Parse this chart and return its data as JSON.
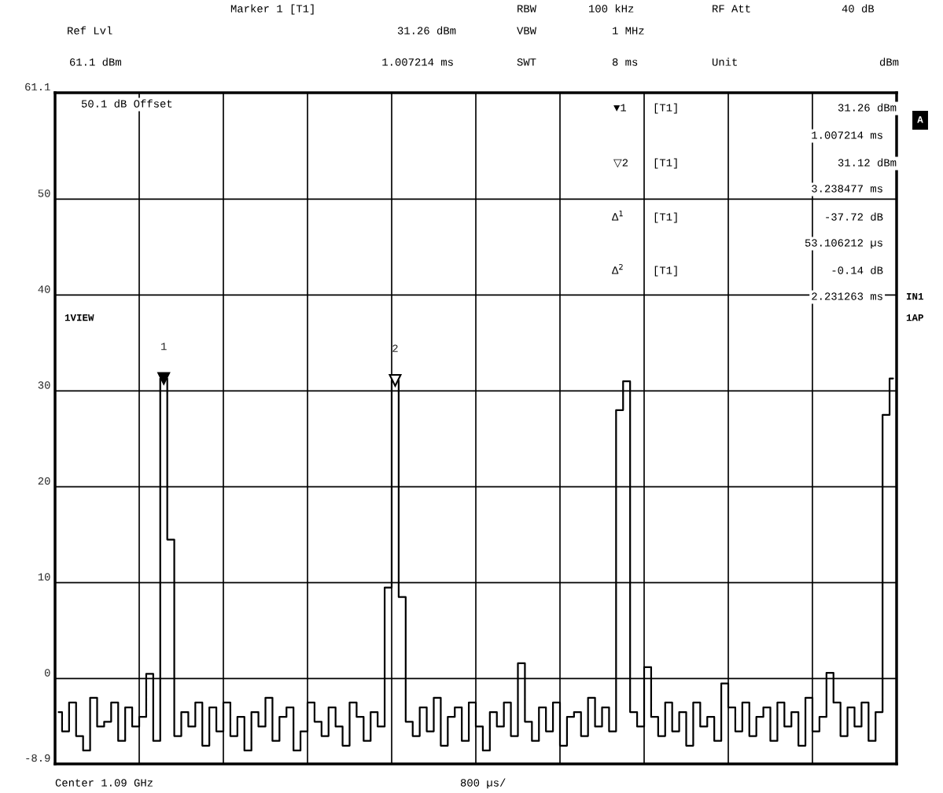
{
  "chart_data": {
    "type": "step",
    "categories": [
      null,
      null,
      null,
      null,
      null,
      null,
      null,
      null,
      null,
      null,
      null,
      null,
      null,
      null,
      null,
      null,
      null,
      null,
      null,
      null,
      null,
      null,
      null,
      null,
      null,
      null,
      null,
      null,
      null,
      null,
      null,
      null,
      null,
      null,
      null,
      null,
      null,
      null,
      null,
      null,
      null,
      null,
      null,
      null,
      null,
      null,
      null,
      null,
      null,
      null,
      null,
      null,
      null,
      null,
      null,
      null,
      null,
      null,
      null,
      null,
      null,
      null,
      null,
      null,
      null,
      null,
      null,
      null,
      null,
      null,
      null,
      null,
      null,
      null,
      null,
      null,
      null,
      null,
      null,
      null,
      null,
      null,
      null,
      null,
      null,
      null,
      null,
      null,
      null,
      null,
      null,
      null,
      null,
      null,
      null,
      null,
      null,
      null,
      null,
      null,
      null,
      null,
      null,
      null,
      null,
      null,
      null,
      null,
      null,
      null,
      null,
      null,
      null,
      null,
      null,
      null,
      null,
      null,
      null,
      null
    ],
    "series": [
      {
        "color": "#000000",
        "values": [
          -3.5,
          -5.5,
          -2.5,
          -6,
          -7.5,
          -2,
          -5,
          -4.5,
          -2.5,
          -6.5,
          -3,
          -5,
          -4,
          0.5,
          -6.5,
          31.3,
          14.5,
          -6,
          -3.5,
          -5,
          -2.5,
          -7,
          -3,
          -5.5,
          -2.5,
          -6,
          -4,
          -7.5,
          -3.5,
          -5,
          -2,
          -6.5,
          -4,
          -3,
          -7.5,
          -5.5,
          -2.5,
          -4.5,
          -6,
          -3,
          -5,
          -7,
          -2.5,
          -4,
          -6.5,
          -3.5,
          -5,
          9.5,
          31.1,
          8.5,
          -4.5,
          -6,
          -3,
          -5.5,
          -2,
          -7,
          -4,
          -3,
          -6.5,
          -2.5,
          -5,
          -7.5,
          -3.5,
          -5,
          -2.5,
          -6,
          1.6,
          -4.5,
          -6.5,
          -3,
          -5.5,
          -2.5,
          -7,
          -4,
          -3.5,
          -6,
          -2,
          -5,
          -3,
          -5.5,
          28,
          31,
          -3.5,
          -5,
          1.2,
          -4,
          -6,
          -2.5,
          -5.5,
          -3.5,
          -7,
          -2.5,
          -5,
          -4,
          -6.5,
          -0.5,
          -3,
          -5.5,
          -2.5,
          -6,
          -4,
          -3,
          -6.5,
          -2.5,
          -5,
          -3.5,
          -7,
          -2,
          -5.5,
          -4,
          0.6,
          -2.5,
          -6,
          -3,
          -5,
          -2.5,
          -6.5,
          -3.5,
          27.5,
          31.3
        ]
      }
    ],
    "ylim": [
      -8.9,
      61.1
    ],
    "yticks": [
      -8.9,
      0,
      10,
      20,
      30,
      40,
      50,
      61.1
    ],
    "grid": true,
    "tick_labels": "y",
    "annotations": [
      {
        "text": "1",
        "y": 31.3
      },
      {
        "text": "2",
        "y": 31.1
      },
      "Marker 1 [T1]",
      "RBW",
      "100 kHz",
      "RF Att",
      "40 dB",
      "Ref Lvl",
      "31.26 dBm",
      "VBW",
      "1 MHz",
      "61.1 dBm",
      "1.007214 ms",
      "SWT",
      "8 ms",
      "Unit",
      "dBm",
      "50.1 dB Offset",
      "▼1",
      "[T1]",
      "31.26 dBm",
      "1.007214 ms",
      "▽2",
      "[T1]",
      "31.12 dBm",
      "3.238477 ms",
      "Δ$^{1}$",
      "[T1]",
      "-37.72 dB",
      "53.106212 µs",
      "Δ$^{2}$",
      "[T1]",
      "-0.14 dB",
      "2.231263 ms",
      "A",
      "IN1",
      "1AP",
      "1VIEW",
      "Center 1.09 GHz",
      "800 µs/"
    ]
  }
}
